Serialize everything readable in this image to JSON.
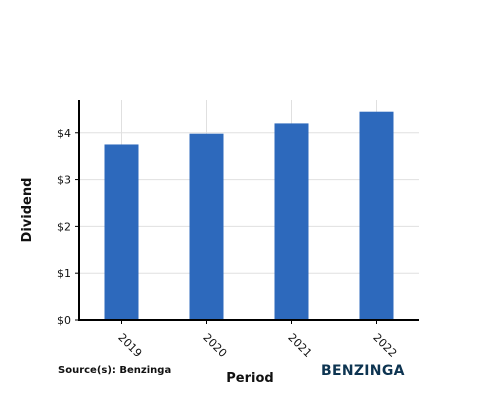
{
  "chart_data": {
    "type": "bar",
    "categories": [
      "2019",
      "2020",
      "2021",
      "2022"
    ],
    "values": [
      3.75,
      3.98,
      4.2,
      4.45
    ],
    "xlabel": "Period",
    "ylabel": "Dividend",
    "ylim": [
      0,
      4.7
    ],
    "yticks": [
      0,
      1,
      2,
      3,
      4
    ],
    "ytick_labels": [
      "$0",
      "$1",
      "$2",
      "$3",
      "$4"
    ],
    "grid": true,
    "bar_color": "#2d69bc",
    "grid_color": "#e0e0e0"
  },
  "footer": {
    "source": "Source(s): Benzinga",
    "logo_text": "BENZINGA",
    "logo_color": "#0d3451"
  }
}
